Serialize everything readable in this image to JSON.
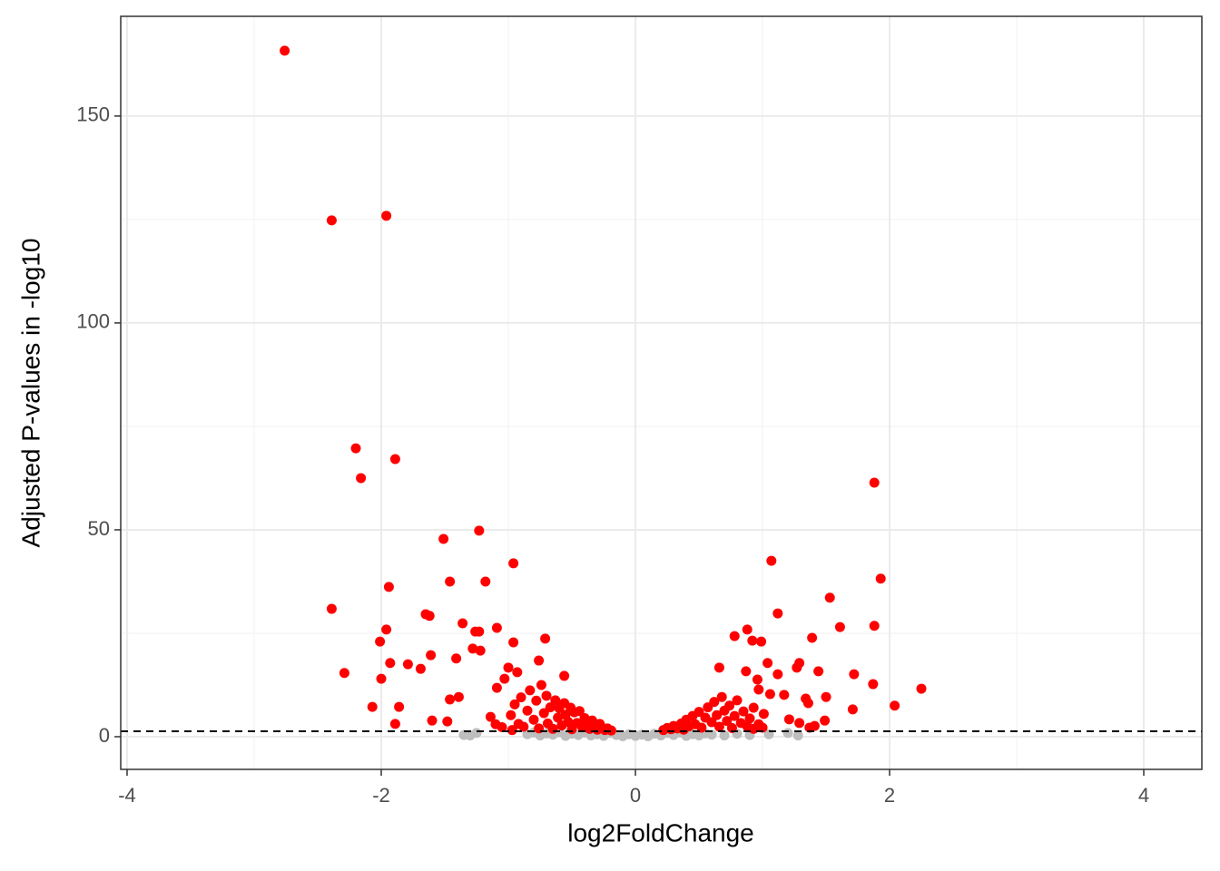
{
  "chart_data": {
    "type": "scatter",
    "x_label": "log2FoldChange",
    "y_label": "Adjusted P-values in -log10",
    "xlim": [
      -4.05,
      4.457
    ],
    "ylim": [
      -7.9,
      174.1
    ],
    "xticks": [
      -4,
      -2,
      0,
      2,
      4
    ],
    "yticks": [
      0,
      50,
      100,
      150
    ],
    "x_minor_grid": [
      -3,
      -1,
      1,
      3
    ],
    "y_minor_grid": [
      25,
      75,
      125
    ],
    "grid": true,
    "threshold": 1.3,
    "series": [
      {
        "color": "#bebebe",
        "x": [
          -1.35,
          -1.3,
          -1.25,
          -0.85,
          -0.8,
          -0.75,
          -0.7,
          -0.65,
          -0.6,
          -0.55,
          -0.5,
          -0.45,
          -0.4,
          -0.35,
          -0.3,
          -0.25,
          -0.2,
          -0.15,
          -0.1,
          -0.05,
          0,
          0.05,
          0.1,
          0.15,
          0.2,
          0.25,
          0.3,
          0.35,
          0.4,
          0.45,
          0.5,
          0.55,
          0.6,
          0.7,
          0.8,
          0.9,
          1.05,
          1.2,
          1.28
        ],
        "values": [
          0.4,
          0.3,
          0.9,
          0.6,
          1.0,
          0.3,
          0.8,
          0.5,
          1.1,
          0.2,
          0.7,
          0.4,
          1.0,
          0.3,
          0.6,
          0.2,
          0.9,
          0.4,
          0.1,
          0.6,
          0.2,
          0.5,
          0.1,
          0.7,
          0.3,
          0.9,
          0.4,
          1.0,
          0.2,
          0.6,
          0.3,
          0.8,
          0.5,
          0.3,
          0.7,
          0.4,
          0.6,
          0.9,
          0.3
        ]
      },
      {
        "color": "#ff0000",
        "x": [
          -2.76,
          -2.39,
          -1.96,
          -2.2,
          -2.16,
          -1.89,
          -2.39,
          -2.29,
          -2.01,
          -1.96,
          -1.94,
          -1.93,
          -2.0,
          -2.07,
          -1.86,
          -1.89,
          -1.65,
          -1.62,
          -1.69,
          -1.79,
          -1.61,
          -1.51,
          -1.46,
          -1.36,
          -1.41,
          -1.46,
          -1.39,
          -1.6,
          -1.48,
          -1.23,
          -1.18,
          -1.26,
          -1.23,
          -1.28,
          -1.22,
          -1.09,
          -0.96,
          -0.96,
          -0.71,
          -0.76,
          -0.56,
          -1.09,
          -1.03,
          -1.0,
          -0.93,
          -1.14,
          -0.98,
          -0.95,
          -0.92,
          -0.9,
          -0.88,
          -0.85,
          -0.83,
          -0.8,
          -0.78,
          -0.76,
          -0.74,
          -0.72,
          -0.7,
          -0.69,
          -0.67,
          -0.65,
          -0.63,
          -0.61,
          -0.6,
          -0.58,
          -0.56,
          -0.55,
          -0.53,
          -0.51,
          -0.5,
          -0.48,
          -0.46,
          -0.44,
          -0.42,
          -0.4,
          -0.38,
          -0.36,
          -0.34,
          -0.32,
          -0.3,
          -0.28,
          -0.26,
          -0.24,
          -0.22,
          -0.19,
          -1.05,
          -1.1,
          -0.97,
          1.07,
          1.88,
          1.93,
          1.53,
          1.88,
          1.61,
          1.12,
          0.88,
          0.78,
          0.92,
          0.99,
          1.39,
          1.04,
          1.29,
          1.27,
          0.66,
          0.87,
          1.12,
          1.44,
          1.72,
          1.87,
          2.25,
          2.04,
          1.71,
          1.5,
          1.34,
          1.36,
          1.17,
          1.06,
          0.96,
          0.97,
          0.93,
          1.01,
          1.21,
          1.29,
          1.49,
          1.37,
          1.41,
          0.22,
          0.25,
          0.28,
          0.3,
          0.33,
          0.36,
          0.38,
          0.4,
          0.42,
          0.45,
          0.47,
          0.5,
          0.52,
          0.55,
          0.57,
          0.6,
          0.62,
          0.64,
          0.66,
          0.68,
          0.7,
          0.72,
          0.74,
          0.76,
          0.78,
          0.8,
          0.83,
          0.85,
          0.88,
          0.9,
          0.93,
          0.97,
          1.0
        ],
        "values": [
          165.8,
          124.8,
          125.9,
          69.7,
          62.5,
          67.1,
          30.9,
          15.4,
          23.0,
          25.9,
          36.2,
          17.8,
          14.0,
          7.2,
          7.2,
          3.1,
          29.6,
          29.2,
          16.4,
          17.5,
          19.7,
          47.8,
          37.5,
          27.4,
          18.9,
          9.0,
          9.6,
          3.9,
          3.7,
          49.8,
          37.5,
          25.4,
          25.4,
          21.3,
          20.8,
          26.3,
          41.9,
          22.8,
          23.7,
          18.4,
          14.7,
          11.8,
          14.0,
          16.7,
          15.6,
          4.8,
          5.2,
          7.8,
          3.1,
          9.5,
          2.4,
          6.3,
          11.2,
          4.1,
          8.7,
          2.0,
          12.5,
          5.7,
          9.9,
          3.2,
          7.1,
          1.9,
          8.8,
          4.6,
          6.9,
          2.7,
          8.1,
          5.3,
          3.6,
          7.0,
          1.8,
          5.9,
          3.3,
          6.2,
          2.4,
          4.5,
          3.0,
          1.9,
          3.9,
          2.5,
          1.7,
          3.1,
          2.1,
          1.6,
          2.0,
          1.5,
          2.3,
          3.0,
          1.6,
          42.5,
          61.4,
          38.2,
          33.6,
          26.8,
          26.5,
          29.8,
          25.9,
          24.3,
          23.2,
          23.0,
          23.9,
          17.8,
          17.8,
          16.7,
          16.7,
          15.8,
          15.1,
          15.8,
          15.1,
          12.7,
          11.6,
          7.5,
          6.6,
          9.6,
          9.2,
          8.1,
          10.1,
          10.3,
          13.8,
          11.4,
          7.0,
          5.5,
          4.2,
          3.3,
          3.9,
          2.2,
          2.6,
          1.6,
          2.1,
          1.8,
          2.6,
          2.0,
          3.2,
          1.7,
          4.1,
          2.5,
          5.0,
          3.0,
          6.0,
          2.2,
          4.6,
          7.1,
          3.5,
          8.4,
          5.2,
          2.4,
          9.6,
          6.3,
          3.8,
          7.5,
          2.1,
          5.0,
          8.8,
          3.3,
          6.1,
          2.5,
          4.4,
          1.9,
          3.0,
          2.2
        ]
      }
    ]
  }
}
